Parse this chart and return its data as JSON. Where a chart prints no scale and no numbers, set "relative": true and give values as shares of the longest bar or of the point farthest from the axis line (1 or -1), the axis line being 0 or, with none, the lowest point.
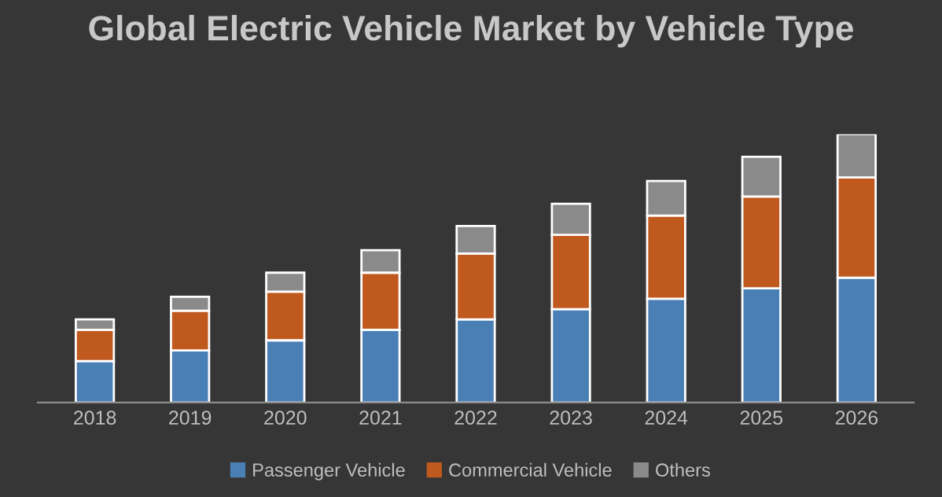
{
  "chart_data": {
    "type": "bar",
    "title": "Global Electric Vehicle Market by Vehicle Type",
    "relative": true,
    "stacked": true,
    "legend": "bottom",
    "grid": false,
    "categories": [
      "2018",
      "2019",
      "2020",
      "2021",
      "2022",
      "2023",
      "2024",
      "2025",
      "2026"
    ],
    "series": [
      {
        "name": "Passenger Vehicle",
        "color": "#4a7fb5",
        "values": [
          0.155,
          0.194,
          0.232,
          0.271,
          0.31,
          0.348,
          0.387,
          0.426,
          0.465
        ]
      },
      {
        "name": "Commercial Vehicle",
        "color": "#c0591e",
        "values": [
          0.116,
          0.148,
          0.181,
          0.213,
          0.245,
          0.277,
          0.31,
          0.342,
          0.374
        ]
      },
      {
        "name": "Others",
        "color": "#8a8a8a",
        "values": [
          0.039,
          0.052,
          0.071,
          0.084,
          0.103,
          0.116,
          0.129,
          0.148,
          0.161
        ]
      }
    ]
  }
}
